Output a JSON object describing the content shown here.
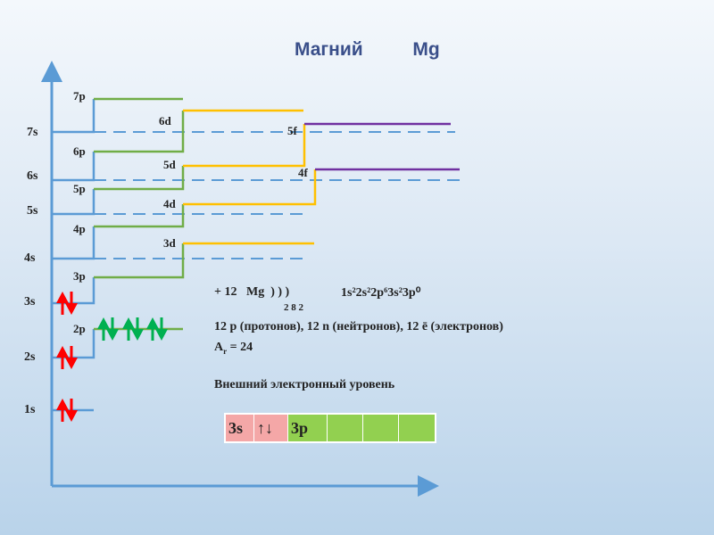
{
  "title": {
    "name": "Магний",
    "symbol": "Mg"
  },
  "levels": {
    "s": [
      "1s",
      "2s",
      "3s",
      "4s",
      "5s",
      "6s",
      "7s"
    ],
    "p": [
      "2p",
      "3p",
      "4p",
      "5p",
      "6p",
      "7p"
    ],
    "d": [
      "3d",
      "4d",
      "5d",
      "6d"
    ],
    "f": [
      "4f",
      "5f"
    ]
  },
  "info": {
    "charge": "+ 12",
    "symbol": "Mg",
    "shells": ") ) )",
    "shell_counts": "2  8  2",
    "config": "1s²2s²2p⁶3s²3p⁰",
    "particles": "12 p (протонов), 12 n (нейтронов), 12 ē (электронов)",
    "ar_label": "A",
    "ar_sub": "r",
    "ar_value": " = 24",
    "outer_level": "Внешний электронный уровень"
  },
  "outer_cells": {
    "s_label": "3s",
    "s_cell": "↑↓",
    "p_label": "3p"
  },
  "colors": {
    "s": "#5b9bd5",
    "p": "#70ad47",
    "d": "#ffc000",
    "f": "#7030a0",
    "electron_s": "#ff0000",
    "electron_p": "#00b050"
  }
}
